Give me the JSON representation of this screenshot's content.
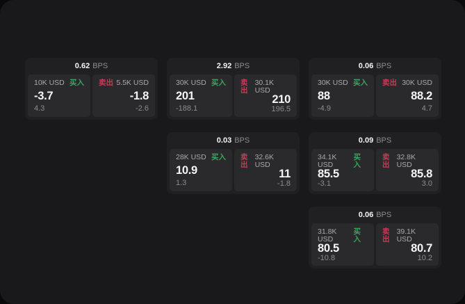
{
  "labels": {
    "bps_unit": "BPS",
    "buy": "买入",
    "sell": "卖出"
  },
  "colors": {
    "outer_background": "#0a0a0b",
    "window_background": "#19191b",
    "card_background": "#202022",
    "panel_background": "#2a2a2d",
    "buy_green": "#3aa35f",
    "sell_red": "#c73b55",
    "value_white": "#f5f5f5",
    "muted_gray": "#8d8d8d",
    "label_gray": "#a9a9ab"
  },
  "cards": [
    {
      "bps": "0.62",
      "buy": {
        "amount": "10K USD",
        "value": "-3.7",
        "sub": "4.3"
      },
      "sell": {
        "amount": "5.5K USD",
        "value": "-1.8",
        "sub": "-2.6"
      }
    },
    {
      "bps": "2.92",
      "buy": {
        "amount": "30K USD",
        "value": "201",
        "sub": "-188.1"
      },
      "sell": {
        "amount": "30.1K USD",
        "value": "210",
        "sub": "196.5"
      }
    },
    {
      "bps": "0.06",
      "buy": {
        "amount": "30K USD",
        "value": "88",
        "sub": "-4.9"
      },
      "sell": {
        "amount": "30K USD",
        "value": "88.2",
        "sub": "4.7"
      }
    },
    {
      "bps": "0.03",
      "buy": {
        "amount": "28K USD",
        "value": "10.9",
        "sub": "1.3"
      },
      "sell": {
        "amount": "32.6K USD",
        "value": "11",
        "sub": "-1.8"
      }
    },
    {
      "bps": "0.09",
      "buy": {
        "amount": "34.1K USD",
        "value": "85.5",
        "sub": "-3.1"
      },
      "sell": {
        "amount": "32.8K USD",
        "value": "85.8",
        "sub": "3.0"
      }
    },
    {
      "bps": "0.06",
      "buy": {
        "amount": "31.8K USD",
        "value": "80.5",
        "sub": "-10.8"
      },
      "sell": {
        "amount": "39.1K USD",
        "value": "80.7",
        "sub": "10.2"
      }
    }
  ]
}
